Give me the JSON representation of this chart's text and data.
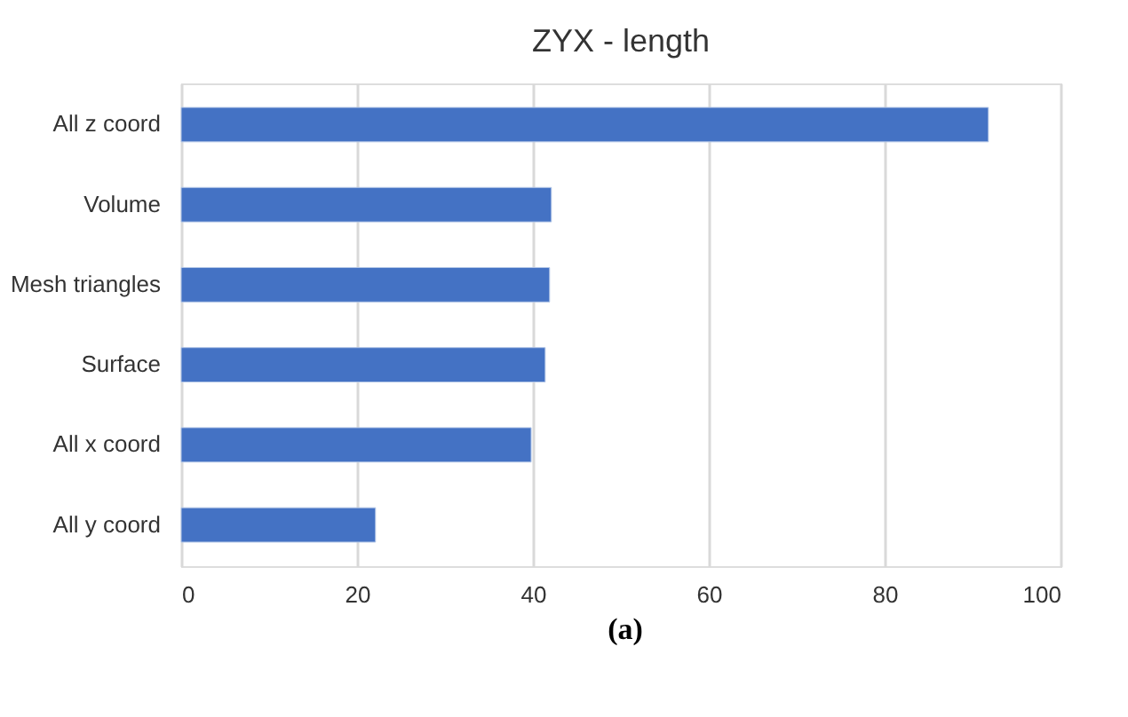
{
  "chart_data": {
    "type": "bar",
    "orientation": "horizontal",
    "title": "ZYX - length",
    "categories": [
      "All z coord",
      "Volume",
      "Mesh triangles",
      "Surface",
      "All x coord",
      "All y coord"
    ],
    "values": [
      91.8,
      42.1,
      41.9,
      41.4,
      39.8,
      22.1
    ],
    "color": "#4472c4",
    "xlim": [
      0,
      100
    ],
    "xticks": [
      0,
      20,
      40,
      60,
      80,
      100
    ],
    "grid": "x",
    "annotations": [
      "(a)"
    ]
  }
}
